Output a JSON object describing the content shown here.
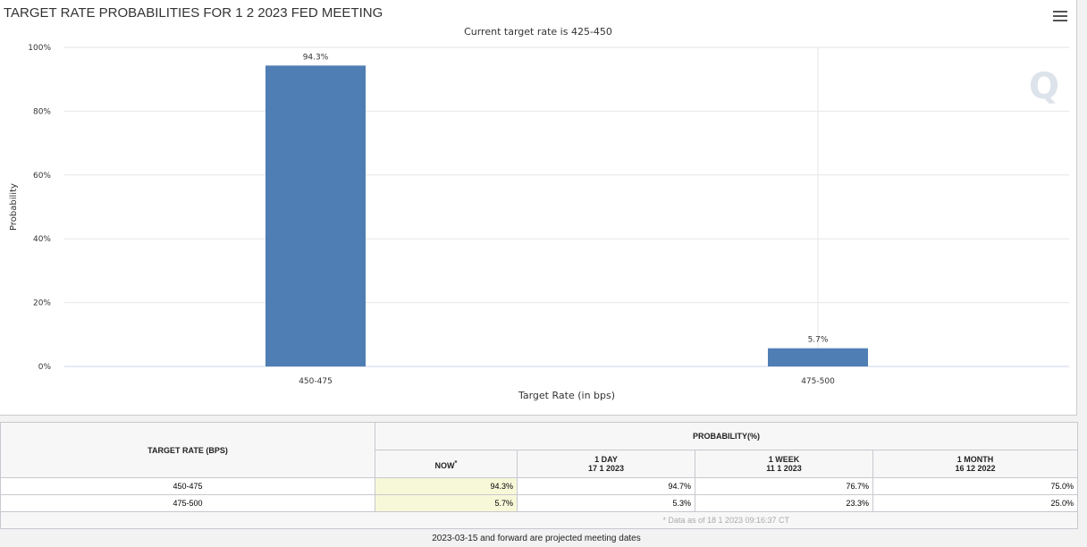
{
  "chart_data": {
    "type": "bar",
    "title": "TARGET RATE PROBABILITIES FOR 1 2 2023 FED MEETING",
    "subtitle": "Current target rate is 425-450",
    "categories": [
      "450-475",
      "475-500"
    ],
    "values": [
      94.3,
      5.7
    ],
    "data_labels": [
      "94.3%",
      "5.7%"
    ],
    "xlabel": "Target Rate (in bps)",
    "ylabel": "Probability",
    "ylim": [
      0,
      100
    ],
    "yticks": [
      "0%",
      "20%",
      "40%",
      "60%",
      "80%",
      "100%"
    ],
    "bar_color": "#4f7eb4"
  },
  "table": {
    "col_target": "TARGET RATE (BPS)",
    "col_prob": "PROBABILITY(%)",
    "sub": [
      {
        "l1": "NOW",
        "l2": "",
        "star": "*"
      },
      {
        "l1": "1 DAY",
        "l2": "17 1 2023"
      },
      {
        "l1": "1 WEEK",
        "l2": "11 1 2023"
      },
      {
        "l1": "1 MONTH",
        "l2": "16 12 2022"
      }
    ],
    "rows": [
      {
        "rate": "450-475",
        "now": "94.3%",
        "day": "94.7%",
        "week": "76.7%",
        "month": "75.0%"
      },
      {
        "rate": "475-500",
        "now": "5.7%",
        "day": "5.3%",
        "week": "23.3%",
        "month": "25.0%"
      }
    ],
    "note": "* Data as of 18 1 2023 09:16:37 CT"
  },
  "footer": "2023-03-15 and forward are projected meeting dates"
}
